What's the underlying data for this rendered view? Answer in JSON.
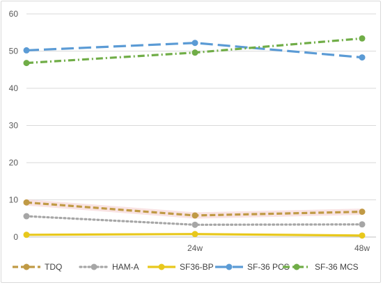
{
  "chart_data": {
    "type": "line",
    "title": "",
    "xlabel": "",
    "ylabel": "",
    "categories": [
      "",
      "24w",
      "48w"
    ],
    "ylim": [
      0,
      60
    ],
    "yticks": [
      0,
      10,
      20,
      30,
      40,
      50,
      60
    ],
    "grid": true,
    "legend": "bottom",
    "series": [
      {
        "name": "TDQ",
        "values": [
          9.3,
          5.8,
          6.8
        ],
        "color": "#c09a45",
        "dash": "dash",
        "glow": true
      },
      {
        "name": "HAM-A",
        "values": [
          5.6,
          3.3,
          3.4
        ],
        "color": "#a6a6a6",
        "dash": "dot",
        "glow": false
      },
      {
        "name": "SF36-BP",
        "values": [
          0.6,
          0.8,
          0.4
        ],
        "color": "#e8c81c",
        "dash": "solid",
        "glow": false
      },
      {
        "name": "SF-36 PCS",
        "values": [
          50.2,
          52.2,
          48.3
        ],
        "color": "#5b9bd5",
        "dash": "longdash",
        "glow": false
      },
      {
        "name": "SF-36 MCS",
        "values": [
          46.8,
          49.6,
          53.4
        ],
        "color": "#70ad47",
        "dash": "dashdot",
        "glow": false
      }
    ]
  }
}
